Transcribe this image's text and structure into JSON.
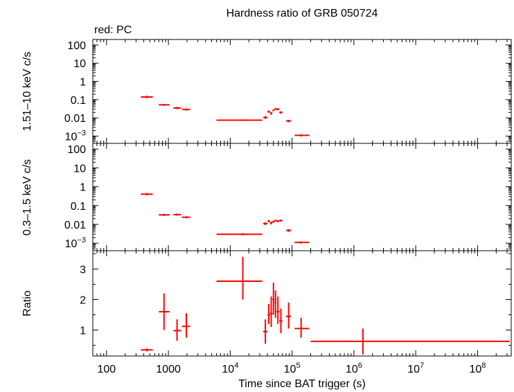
{
  "chart_data": {
    "type": "scatter",
    "title": "Hardness ratio of GRB 050724",
    "subtitle": "red: PC",
    "xlabel": "Time since BAT trigger (s)",
    "x_scale": "log",
    "xlim": [
      60,
      350000000
    ],
    "x_ticks": [
      {
        "value": 100,
        "label": "100"
      },
      {
        "value": 1000,
        "label": "1000"
      },
      {
        "value": 10000,
        "base": "10",
        "exp": "4"
      },
      {
        "value": 100000,
        "base": "10",
        "exp": "5"
      },
      {
        "value": 1000000,
        "base": "10",
        "exp": "6"
      },
      {
        "value": 10000000,
        "base": "10",
        "exp": "7"
      },
      {
        "value": 100000000,
        "base": "10",
        "exp": "8"
      }
    ],
    "grid": false,
    "series_color": "#ff0000",
    "panels": [
      {
        "id": "hard",
        "ylabel": "1.51–10 keV c/s",
        "y_scale": "log",
        "ylim": [
          0.0004,
          200
        ],
        "y_ticks": [
          {
            "value": 100,
            "label": "100"
          },
          {
            "value": 10,
            "label": "10"
          },
          {
            "value": 1,
            "label": "1"
          },
          {
            "value": 0.1,
            "label": "0.1"
          },
          {
            "value": 0.01,
            "label": "0.01"
          },
          {
            "value": 0.001,
            "base": "10",
            "exp": "−3"
          }
        ],
        "points": [
          {
            "x": 450,
            "xlo": 360,
            "xhi": 560,
            "y": 0.14,
            "ylo": 0.12,
            "yhi": 0.165
          },
          {
            "x": 850,
            "xlo": 700,
            "xhi": 1050,
            "y": 0.052,
            "ylo": 0.046,
            "yhi": 0.058
          },
          {
            "x": 1380,
            "xlo": 1200,
            "xhi": 1600,
            "y": 0.035,
            "ylo": 0.03,
            "yhi": 0.04
          },
          {
            "x": 1950,
            "xlo": 1650,
            "xhi": 2250,
            "y": 0.029,
            "ylo": 0.025,
            "yhi": 0.033
          },
          {
            "x": 16000,
            "xlo": 6000,
            "xhi": 33000,
            "y": 0.0075,
            "ylo": 0.0068,
            "yhi": 0.0083
          },
          {
            "x": 37000,
            "xlo": 34000,
            "xhi": 40000,
            "y": 0.0105,
            "ylo": 0.0088,
            "yhi": 0.0125
          },
          {
            "x": 42000,
            "xlo": 40000,
            "xhi": 44000,
            "y": 0.022,
            "ylo": 0.019,
            "yhi": 0.025
          },
          {
            "x": 46000,
            "xlo": 44000,
            "xhi": 48000,
            "y": 0.018,
            "ylo": 0.015,
            "yhi": 0.021
          },
          {
            "x": 50000,
            "xlo": 48000,
            "xhi": 52000,
            "y": 0.026,
            "ylo": 0.023,
            "yhi": 0.029
          },
          {
            "x": 54000,
            "xlo": 52000,
            "xhi": 56000,
            "y": 0.031,
            "ylo": 0.027,
            "yhi": 0.035
          },
          {
            "x": 59000,
            "xlo": 56000,
            "xhi": 62000,
            "y": 0.03,
            "ylo": 0.026,
            "yhi": 0.034
          },
          {
            "x": 66000,
            "xlo": 62000,
            "xhi": 70000,
            "y": 0.02,
            "ylo": 0.017,
            "yhi": 0.023
          },
          {
            "x": 88000,
            "xlo": 80000,
            "xhi": 96000,
            "y": 0.0068,
            "ylo": 0.0058,
            "yhi": 0.0078
          },
          {
            "x": 140000,
            "xlo": 110000,
            "xhi": 190000,
            "y": 0.0011,
            "ylo": 0.00095,
            "yhi": 0.00125
          }
        ]
      },
      {
        "id": "soft",
        "ylabel": "0.3–1.5 keV c/s",
        "y_scale": "log",
        "ylim": [
          0.0004,
          200
        ],
        "y_ticks": [
          {
            "value": 100,
            "label": "100"
          },
          {
            "value": 10,
            "label": "10"
          },
          {
            "value": 1,
            "label": "1"
          },
          {
            "value": 0.1,
            "label": "0.1"
          },
          {
            "value": 0.01,
            "label": "0.01"
          },
          {
            "value": 0.001,
            "base": "10",
            "exp": "−3"
          }
        ],
        "points": [
          {
            "x": 450,
            "xlo": 360,
            "xhi": 560,
            "y": 0.4,
            "ylo": 0.35,
            "yhi": 0.46
          },
          {
            "x": 850,
            "xlo": 700,
            "xhi": 1050,
            "y": 0.032,
            "ylo": 0.028,
            "yhi": 0.036
          },
          {
            "x": 1380,
            "xlo": 1200,
            "xhi": 1600,
            "y": 0.033,
            "ylo": 0.029,
            "yhi": 0.038
          },
          {
            "x": 1950,
            "xlo": 1650,
            "xhi": 2250,
            "y": 0.024,
            "ylo": 0.021,
            "yhi": 0.027
          },
          {
            "x": 16000,
            "xlo": 6000,
            "xhi": 33000,
            "y": 0.003,
            "ylo": 0.0026,
            "yhi": 0.0034
          },
          {
            "x": 37000,
            "xlo": 34000,
            "xhi": 40000,
            "y": 0.011,
            "ylo": 0.0092,
            "yhi": 0.013
          },
          {
            "x": 42000,
            "xlo": 40000,
            "xhi": 44000,
            "y": 0.015,
            "ylo": 0.013,
            "yhi": 0.017
          },
          {
            "x": 46000,
            "xlo": 44000,
            "xhi": 48000,
            "y": 0.012,
            "ylo": 0.01,
            "yhi": 0.014
          },
          {
            "x": 50000,
            "xlo": 48000,
            "xhi": 52000,
            "y": 0.014,
            "ylo": 0.012,
            "yhi": 0.016
          },
          {
            "x": 54000,
            "xlo": 52000,
            "xhi": 56000,
            "y": 0.016,
            "ylo": 0.014,
            "yhi": 0.018
          },
          {
            "x": 59000,
            "xlo": 56000,
            "xhi": 62000,
            "y": 0.015,
            "ylo": 0.013,
            "yhi": 0.017
          },
          {
            "x": 66000,
            "xlo": 62000,
            "xhi": 70000,
            "y": 0.016,
            "ylo": 0.014,
            "yhi": 0.018
          },
          {
            "x": 88000,
            "xlo": 80000,
            "xhi": 96000,
            "y": 0.0048,
            "ylo": 0.004,
            "yhi": 0.0056
          },
          {
            "x": 140000,
            "xlo": 110000,
            "xhi": 190000,
            "y": 0.0011,
            "ylo": 0.00095,
            "yhi": 0.00125
          }
        ]
      },
      {
        "id": "ratio",
        "ylabel": "Ratio",
        "y_scale": "linear",
        "ylim": [
          0.15,
          3.6
        ],
        "y_ticks": [
          {
            "value": 1,
            "label": "1"
          },
          {
            "value": 2,
            "label": "2"
          },
          {
            "value": 3,
            "label": "3"
          }
        ],
        "points": [
          {
            "x": 450,
            "xlo": 360,
            "xhi": 560,
            "y": 0.35,
            "ylo": 0.3,
            "yhi": 0.4
          },
          {
            "x": 850,
            "xlo": 700,
            "xhi": 1050,
            "y": 1.6,
            "ylo": 1.0,
            "yhi": 2.2
          },
          {
            "x": 1380,
            "xlo": 1200,
            "xhi": 1600,
            "y": 0.98,
            "ylo": 0.65,
            "yhi": 1.35
          },
          {
            "x": 1950,
            "xlo": 1650,
            "xhi": 2250,
            "y": 1.12,
            "ylo": 0.75,
            "yhi": 1.55
          },
          {
            "x": 16000,
            "xlo": 6000,
            "xhi": 33000,
            "y": 2.6,
            "ylo": 2.0,
            "yhi": 3.4
          },
          {
            "x": 37000,
            "xlo": 34000,
            "xhi": 40000,
            "y": 0.95,
            "ylo": 0.55,
            "yhi": 1.35
          },
          {
            "x": 42000,
            "xlo": 40000,
            "xhi": 44000,
            "y": 1.5,
            "ylo": 1.2,
            "yhi": 1.85
          },
          {
            "x": 46000,
            "xlo": 44000,
            "xhi": 48000,
            "y": 1.55,
            "ylo": 1.1,
            "yhi": 2.1
          },
          {
            "x": 50000,
            "xlo": 48000,
            "xhi": 52000,
            "y": 2.0,
            "ylo": 1.5,
            "yhi": 2.55
          },
          {
            "x": 54000,
            "xlo": 52000,
            "xhi": 56000,
            "y": 1.9,
            "ylo": 1.4,
            "yhi": 2.3
          },
          {
            "x": 59000,
            "xlo": 56000,
            "xhi": 62000,
            "y": 1.6,
            "ylo": 1.2,
            "yhi": 2.1
          },
          {
            "x": 66000,
            "xlo": 62000,
            "xhi": 70000,
            "y": 1.3,
            "ylo": 0.9,
            "yhi": 1.7
          },
          {
            "x": 88000,
            "xlo": 80000,
            "xhi": 96000,
            "y": 1.45,
            "ylo": 1.05,
            "yhi": 1.9
          },
          {
            "x": 140000,
            "xlo": 110000,
            "xhi": 190000,
            "y": 1.05,
            "ylo": 0.75,
            "yhi": 1.4
          },
          {
            "x": 1400000,
            "xlo": 200000,
            "xhi": 330000000,
            "y": 0.63,
            "ylo": 0.2,
            "yhi": 1.05
          }
        ]
      }
    ]
  }
}
